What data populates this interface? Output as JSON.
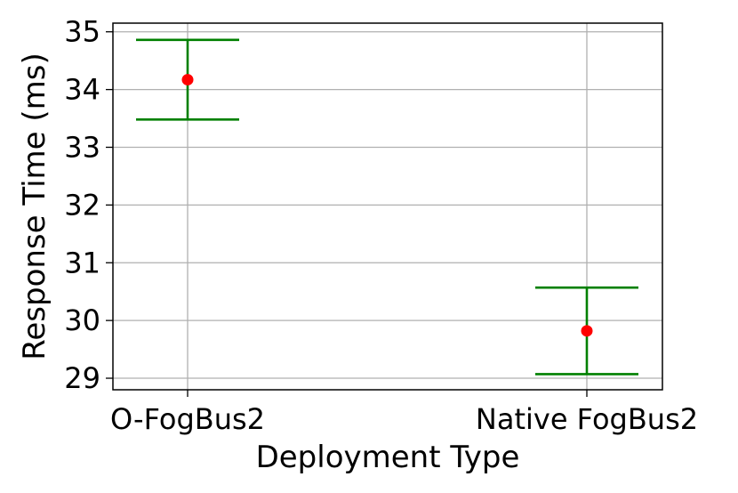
{
  "chart_data": {
    "type": "scatter",
    "title": "",
    "xlabel": "Deployment Type",
    "ylabel": "Response Time (ms)",
    "categories": [
      "O-FogBus2",
      "Native FogBus2"
    ],
    "series": [
      {
        "values": [
          34.17,
          29.82
        ],
        "error_low": [
          33.48,
          29.07
        ],
        "error_high": [
          34.86,
          30.57
        ]
      }
    ],
    "ylim": [
      28.8,
      35.15
    ],
    "yticks": [
      29,
      30,
      31,
      32,
      33,
      34,
      35
    ],
    "grid": true,
    "legend": "none",
    "colors": {
      "point": "#ff0000",
      "errorbar": "#008000",
      "grid": "#b0b0b0"
    }
  }
}
